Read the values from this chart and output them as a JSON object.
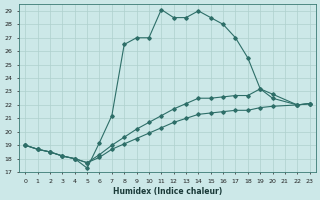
{
  "xlabel": "Humidex (Indice chaleur)",
  "bg_color": "#cce8e8",
  "line_color": "#2d6e68",
  "grid_color": "#afd0ce",
  "xlim": [
    -0.5,
    23.5
  ],
  "ylim": [
    17,
    29.5
  ],
  "xticks": [
    0,
    1,
    2,
    3,
    4,
    5,
    6,
    7,
    8,
    9,
    10,
    11,
    12,
    13,
    14,
    15,
    16,
    17,
    18,
    19,
    20,
    21,
    22,
    23
  ],
  "yticks": [
    17,
    18,
    19,
    20,
    21,
    22,
    23,
    24,
    25,
    26,
    27,
    28,
    29
  ],
  "lines": [
    {
      "x": [
        0,
        1,
        2,
        3,
        4,
        5,
        6,
        7,
        8,
        9,
        10,
        11,
        12,
        13,
        14,
        15,
        16,
        17,
        18,
        19,
        20,
        22,
        23
      ],
      "y": [
        19,
        18.7,
        18.5,
        18.2,
        18.0,
        17.3,
        19.2,
        21.2,
        26.5,
        27.0,
        27.0,
        29.1,
        28.5,
        28.5,
        29.0,
        28.5,
        28.0,
        27.0,
        25.5,
        23.2,
        22.5,
        22.0,
        22.1
      ]
    },
    {
      "x": [
        0,
        1,
        2,
        3,
        4,
        5,
        6,
        7,
        8,
        9,
        10,
        11,
        12,
        13,
        14,
        15,
        16,
        17,
        18,
        19,
        20,
        22,
        23
      ],
      "y": [
        19,
        18.7,
        18.5,
        18.2,
        18.0,
        17.7,
        18.3,
        19.0,
        19.6,
        20.2,
        20.7,
        21.2,
        21.7,
        22.1,
        22.5,
        22.5,
        22.6,
        22.7,
        22.7,
        23.2,
        22.8,
        22.0,
        22.1
      ]
    },
    {
      "x": [
        0,
        1,
        2,
        3,
        4,
        5,
        6,
        7,
        8,
        9,
        10,
        11,
        12,
        13,
        14,
        15,
        16,
        17,
        18,
        19,
        20,
        22,
        23
      ],
      "y": [
        19,
        18.7,
        18.5,
        18.2,
        18.0,
        17.7,
        18.1,
        18.7,
        19.1,
        19.5,
        19.9,
        20.3,
        20.7,
        21.0,
        21.3,
        21.4,
        21.5,
        21.6,
        21.6,
        21.8,
        21.9,
        22.0,
        22.1
      ]
    }
  ]
}
